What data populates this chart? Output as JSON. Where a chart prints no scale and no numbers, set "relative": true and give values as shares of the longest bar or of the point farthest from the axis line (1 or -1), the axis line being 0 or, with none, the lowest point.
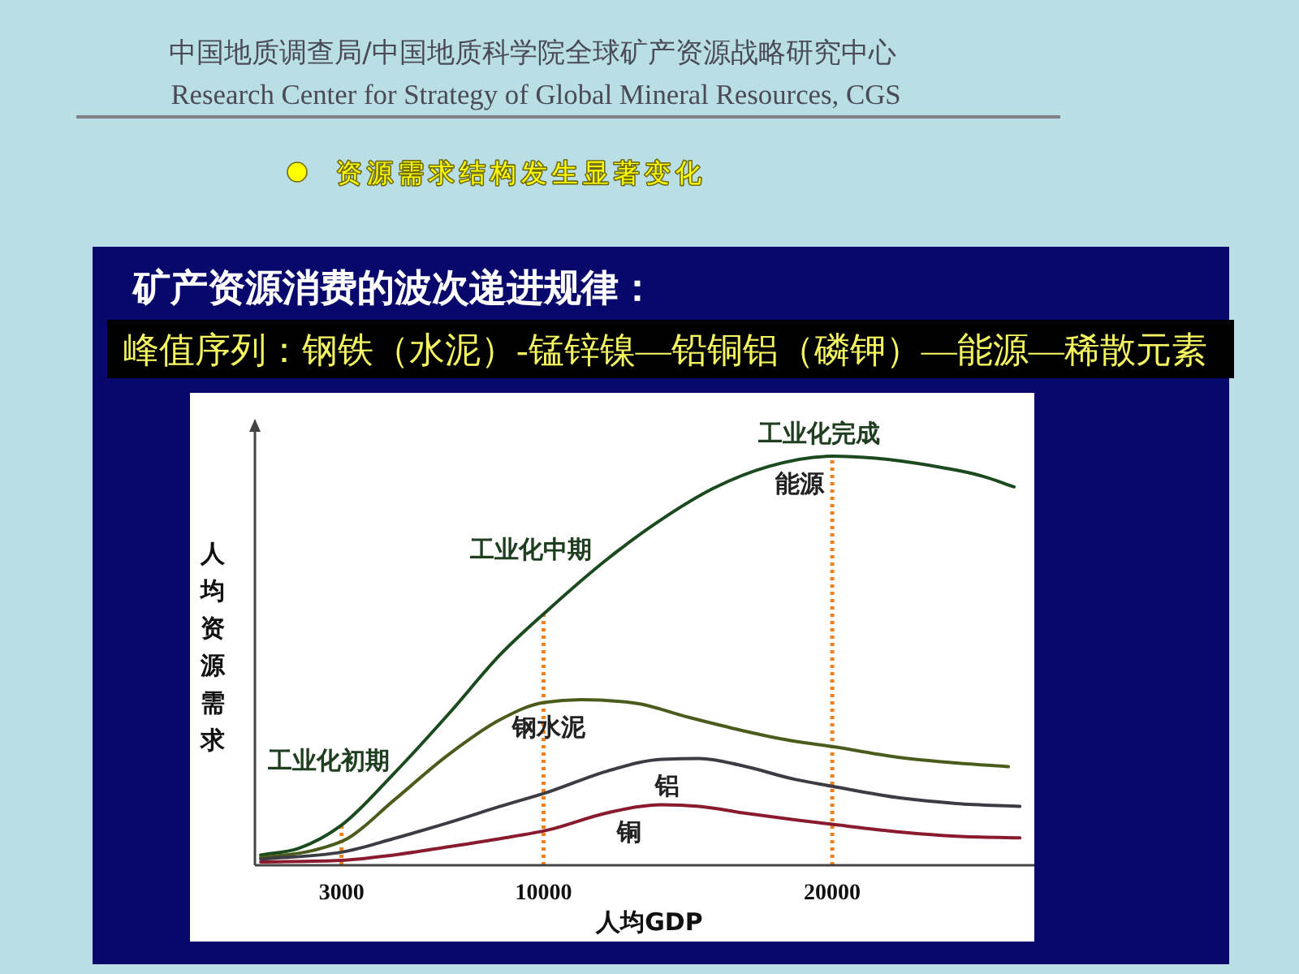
{
  "chart_data": {
    "type": "line",
    "title": "矿产资源消费的波次递进规律：",
    "subtitle": "峰值序列：钢铁（水泥）-锰锌镍—铅铜铝（磷钾）—能源—稀散元素",
    "xlabel": "人均GDP",
    "ylabel": "人均资源需求",
    "annotations": [
      "中国地质调查局/中国地质科学院全球矿产资源战略研究中心",
      "Research Center for Strategy of Global Mineral Resources, CGS",
      "资源需求结构发生显著变化"
    ],
    "relative": true,
    "xlim": [
      0,
      27000
    ],
    "xticks": [
      3000,
      10000,
      20000
    ],
    "line_style": "solid",
    "series": [
      {
        "name": "能源",
        "color": "#1b4a1f",
        "x": [
          200,
          1500,
          3000,
          4800,
          6700,
          8500,
          10200,
          12200,
          14100,
          15900,
          17800,
          20000,
          21500,
          23400,
          25200,
          26300
        ],
        "values": [
          0.025,
          0.041,
          0.098,
          0.223,
          0.369,
          0.515,
          0.627,
          0.748,
          0.846,
          0.922,
          0.975,
          1,
          0.995,
          0.977,
          0.951,
          0.925
        ]
      },
      {
        "name": "钢水泥",
        "color": "#4b5b1c",
        "x": [
          200,
          2000,
          3200,
          4800,
          6700,
          8500,
          10000,
          11300,
          13200,
          15000,
          16900,
          18700,
          20000,
          22400,
          24300,
          26100
        ],
        "values": [
          0.019,
          0.036,
          0.065,
          0.158,
          0.27,
          0.356,
          0.398,
          0.405,
          0.396,
          0.362,
          0.329,
          0.303,
          0.29,
          0.263,
          0.25,
          0.241
        ]
      },
      {
        "name": "铝",
        "color": "#3c3c44",
        "x": [
          200,
          3000,
          4800,
          6700,
          8500,
          10200,
          12200,
          14100,
          15400,
          16900,
          18700,
          20000,
          22400,
          24300,
          26500
        ],
        "values": [
          0.015,
          0.032,
          0.065,
          0.104,
          0.144,
          0.18,
          0.23,
          0.259,
          0.261,
          0.243,
          0.21,
          0.193,
          0.164,
          0.151,
          0.144
        ]
      },
      {
        "name": "铜",
        "color": "#8a1a2e",
        "x": [
          200,
          3000,
          4800,
          6700,
          8500,
          10200,
          12200,
          14100,
          15400,
          16900,
          18700,
          20000,
          22400,
          24300,
          26500
        ],
        "values": [
          0.008,
          0.012,
          0.025,
          0.045,
          0.065,
          0.087,
          0.128,
          0.148,
          0.144,
          0.128,
          0.111,
          0.1,
          0.081,
          0.071,
          0.067
        ]
      }
    ],
    "ref_lines": [
      {
        "axis": "x",
        "value": 3000,
        "label": "工业化初期",
        "color": "#f07f1e",
        "line_style": "dotted"
      },
      {
        "axis": "x",
        "value": 10000,
        "label": "工业化中期",
        "color": "#f07f1e",
        "line_style": "dotted"
      },
      {
        "axis": "x",
        "value": 20000,
        "label": "工业化完成",
        "color": "#f07f1e",
        "line_style": "dotted"
      }
    ]
  }
}
